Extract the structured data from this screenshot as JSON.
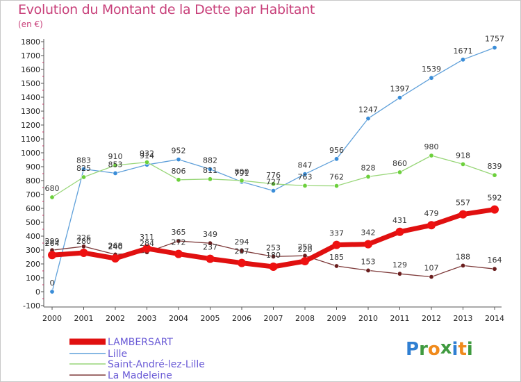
{
  "title": "Evolution du Montant de la Dette par Habitant",
  "unit": "(en €)",
  "logo": {
    "letters": [
      {
        "ch": "P",
        "color": "#2f7fd2"
      },
      {
        "ch": "r",
        "color": "#3f9a3f"
      },
      {
        "ch": "o",
        "color": "#f08a1c"
      },
      {
        "ch": "x",
        "color": "#3f9a3f"
      },
      {
        "ch": "i",
        "color": "#2f7fd2"
      },
      {
        "ch": "t",
        "color": "#f08a1c"
      },
      {
        "ch": "i",
        "color": "#3f9a3f"
      }
    ]
  },
  "chart_data": {
    "type": "line",
    "title": "Evolution du Montant de la Dette par Habitant",
    "ylabel": "(en €)",
    "xlabel": "",
    "x": [
      "2000",
      "2001",
      "2002",
      "2003",
      "2004",
      "2005",
      "2006",
      "2007",
      "2008",
      "2009",
      "2010",
      "2011",
      "2012",
      "2013",
      "2014"
    ],
    "ylim": [
      -100,
      1800
    ],
    "yticks": [
      -100,
      0,
      100,
      200,
      300,
      400,
      500,
      600,
      700,
      800,
      900,
      1000,
      1100,
      1200,
      1300,
      1400,
      1500,
      1600,
      1700,
      1800
    ],
    "grid": false,
    "legend_position": "bottom-left",
    "series": [
      {
        "name": "LAMBERSART",
        "color": "#ee1111",
        "lineColor": "#e01010",
        "values": [
          264,
          280,
          240,
          311,
          272,
          237,
          207,
          180,
          220,
          337,
          342,
          431,
          479,
          557,
          592
        ]
      },
      {
        "name": "Lille",
        "color": "#3a8dd8",
        "lineColor": "#5fa0da",
        "values": [
          0,
          883,
          853,
          914,
          952,
          882,
          791,
          727,
          847,
          956,
          1247,
          1397,
          1539,
          1671,
          1757
        ]
      },
      {
        "name": "Saint-André-lez-Lille",
        "color": "#6cd03c",
        "lineColor": "#98d678",
        "values": [
          680,
          825,
          910,
          932,
          806,
          811,
          800,
          776,
          763,
          762,
          828,
          860,
          980,
          918,
          839
        ]
      },
      {
        "name": "La Madeleine",
        "color": "#6a1e1e",
        "lineColor": "#7e3a3a",
        "values": [
          299,
          326,
          268,
          284,
          365,
          349,
          294,
          253,
          259,
          185,
          153,
          129,
          107,
          188,
          164
        ]
      }
    ]
  }
}
